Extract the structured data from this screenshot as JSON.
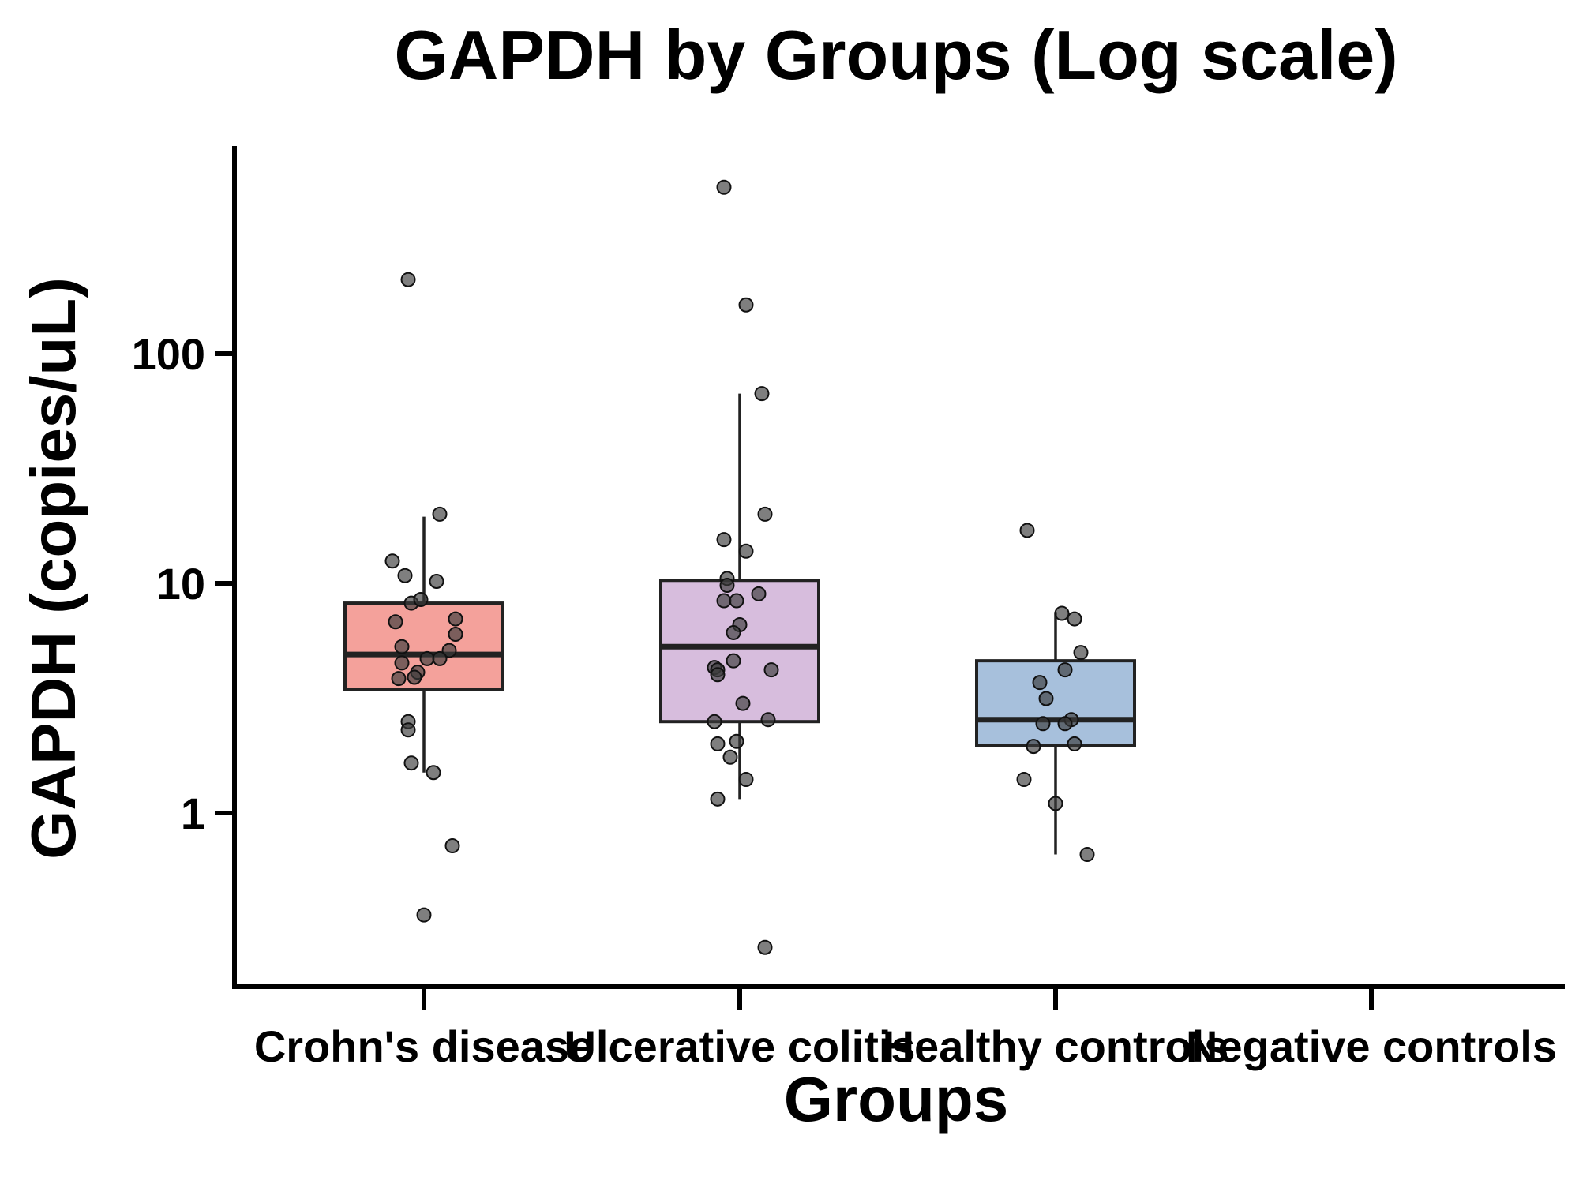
{
  "chart_data": {
    "type": "box",
    "title": "GAPDH by Groups (Log scale)",
    "xlabel": "Groups",
    "ylabel": "GAPDH (copies/uL)",
    "yscale": "log10",
    "ylim": [
      0.17,
      750
    ],
    "yticks": [
      {
        "value": 1,
        "label": "1"
      },
      {
        "value": 10,
        "label": "10"
      },
      {
        "value": 100,
        "label": "100"
      }
    ],
    "categories": [
      "Crohn's disease",
      "Ulcerative colitis",
      "Healthy controls",
      "Negative controls"
    ],
    "groups": [
      {
        "name": "Crohn's disease",
        "color": "#F4A19B",
        "q1": 3.45,
        "median": 4.9,
        "q3": 8.2,
        "whisker_low": 1.5,
        "whisker_high": 19.5,
        "points": [
          {
            "dx": -0.05,
            "y": 210
          },
          {
            "dx": 0.05,
            "y": 20
          },
          {
            "dx": -0.1,
            "y": 12.5
          },
          {
            "dx": -0.06,
            "y": 10.8
          },
          {
            "dx": 0.04,
            "y": 10.2
          },
          {
            "dx": -0.04,
            "y": 8.2
          },
          {
            "dx": -0.01,
            "y": 8.5
          },
          {
            "dx": 0.1,
            "y": 7.0
          },
          {
            "dx": -0.09,
            "y": 6.8
          },
          {
            "dx": 0.1,
            "y": 6.0
          },
          {
            "dx": -0.07,
            "y": 5.3
          },
          {
            "dx": 0.08,
            "y": 5.1
          },
          {
            "dx": 0.01,
            "y": 4.7
          },
          {
            "dx": 0.05,
            "y": 4.7
          },
          {
            "dx": -0.07,
            "y": 4.5
          },
          {
            "dx": -0.02,
            "y": 4.1
          },
          {
            "dx": -0.03,
            "y": 3.9
          },
          {
            "dx": -0.08,
            "y": 3.85
          },
          {
            "dx": -0.05,
            "y": 2.5
          },
          {
            "dx": -0.05,
            "y": 2.3
          },
          {
            "dx": -0.04,
            "y": 1.65
          },
          {
            "dx": 0.03,
            "y": 1.5
          },
          {
            "dx": 0.09,
            "y": 0.72
          },
          {
            "dx": 0.0,
            "y": 0.36
          }
        ]
      },
      {
        "name": "Ulcerative colitis",
        "color": "#D7BDDD",
        "q1": 2.5,
        "median": 5.3,
        "q3": 10.3,
        "whisker_low": 1.15,
        "whisker_high": 67,
        "points": [
          {
            "dx": -0.05,
            "y": 530
          },
          {
            "dx": 0.02,
            "y": 163
          },
          {
            "dx": 0.07,
            "y": 67
          },
          {
            "dx": 0.08,
            "y": 20
          },
          {
            "dx": -0.05,
            "y": 15.5
          },
          {
            "dx": 0.02,
            "y": 13.8
          },
          {
            "dx": -0.04,
            "y": 10.5
          },
          {
            "dx": -0.04,
            "y": 9.8
          },
          {
            "dx": 0.06,
            "y": 9.0
          },
          {
            "dx": -0.05,
            "y": 8.4
          },
          {
            "dx": -0.01,
            "y": 8.4
          },
          {
            "dx": 0.0,
            "y": 6.6
          },
          {
            "dx": -0.02,
            "y": 6.1
          },
          {
            "dx": -0.02,
            "y": 4.6
          },
          {
            "dx": -0.08,
            "y": 4.3
          },
          {
            "dx": -0.07,
            "y": 4.2
          },
          {
            "dx": 0.1,
            "y": 4.2
          },
          {
            "dx": -0.07,
            "y": 4.0
          },
          {
            "dx": 0.01,
            "y": 3.0
          },
          {
            "dx": 0.09,
            "y": 2.55
          },
          {
            "dx": -0.08,
            "y": 2.5
          },
          {
            "dx": -0.01,
            "y": 2.05
          },
          {
            "dx": -0.07,
            "y": 2.0
          },
          {
            "dx": -0.03,
            "y": 1.75
          },
          {
            "dx": 0.02,
            "y": 1.4
          },
          {
            "dx": -0.07,
            "y": 1.15
          },
          {
            "dx": 0.08,
            "y": 0.26
          }
        ]
      },
      {
        "name": "Healthy controls",
        "color": "#A7C0DC",
        "q1": 1.97,
        "median": 2.55,
        "q3": 4.6,
        "whisker_low": 0.66,
        "whisker_high": 7.5,
        "points": [
          {
            "dx": -0.09,
            "y": 17
          },
          {
            "dx": 0.02,
            "y": 7.4
          },
          {
            "dx": 0.06,
            "y": 7.0
          },
          {
            "dx": 0.08,
            "y": 5.0
          },
          {
            "dx": 0.03,
            "y": 4.2
          },
          {
            "dx": -0.05,
            "y": 3.7
          },
          {
            "dx": -0.03,
            "y": 3.15
          },
          {
            "dx": 0.05,
            "y": 2.55
          },
          {
            "dx": 0.03,
            "y": 2.45
          },
          {
            "dx": -0.04,
            "y": 2.45
          },
          {
            "dx": 0.06,
            "y": 2.0
          },
          {
            "dx": -0.07,
            "y": 1.95
          },
          {
            "dx": -0.1,
            "y": 1.4
          },
          {
            "dx": 0.0,
            "y": 1.1
          },
          {
            "dx": 0.1,
            "y": 0.66
          }
        ]
      },
      {
        "name": "Negative controls",
        "color": "#BBBBBB",
        "points": []
      }
    ]
  }
}
